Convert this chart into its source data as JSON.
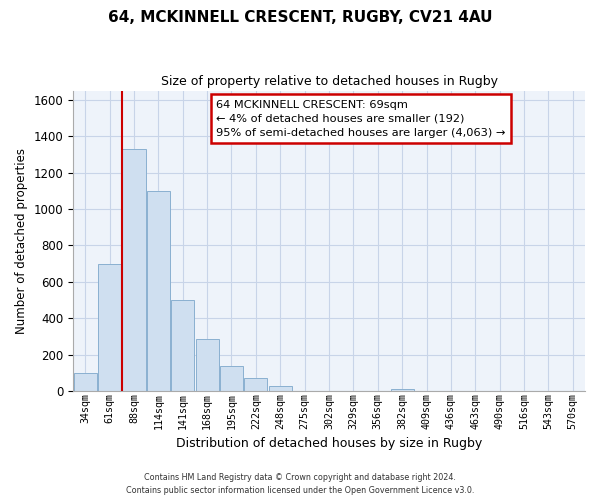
{
  "title": "64, MCKINNELL CRESCENT, RUGBY, CV21 4AU",
  "subtitle": "Size of property relative to detached houses in Rugby",
  "xlabel": "Distribution of detached houses by size in Rugby",
  "ylabel": "Number of detached properties",
  "bar_labels": [
    "34sqm",
    "61sqm",
    "88sqm",
    "114sqm",
    "141sqm",
    "168sqm",
    "195sqm",
    "222sqm",
    "248sqm",
    "275sqm",
    "302sqm",
    "329sqm",
    "356sqm",
    "382sqm",
    "409sqm",
    "436sqm",
    "463sqm",
    "490sqm",
    "516sqm",
    "543sqm",
    "570sqm"
  ],
  "bar_values": [
    100,
    700,
    1330,
    1100,
    500,
    285,
    140,
    75,
    30,
    0,
    0,
    0,
    0,
    15,
    0,
    0,
    0,
    0,
    0,
    0,
    0
  ],
  "bar_color": "#cfdff0",
  "bar_edge_color": "#8ab0d0",
  "ylim": [
    0,
    1650
  ],
  "yticks": [
    0,
    200,
    400,
    600,
    800,
    1000,
    1200,
    1400,
    1600
  ],
  "property_line_color": "#cc0000",
  "annotation_text": "64 MCKINNELL CRESCENT: 69sqm\n← 4% of detached houses are smaller (192)\n95% of semi-detached houses are larger (4,063) →",
  "annotation_box_color": "#ffffff",
  "annotation_box_edge": "#cc0000",
  "footer": "Contains HM Land Registry data © Crown copyright and database right 2024.\nContains public sector information licensed under the Open Government Licence v3.0.",
  "background_color": "#ffffff",
  "grid_color": "#c8d4e8"
}
